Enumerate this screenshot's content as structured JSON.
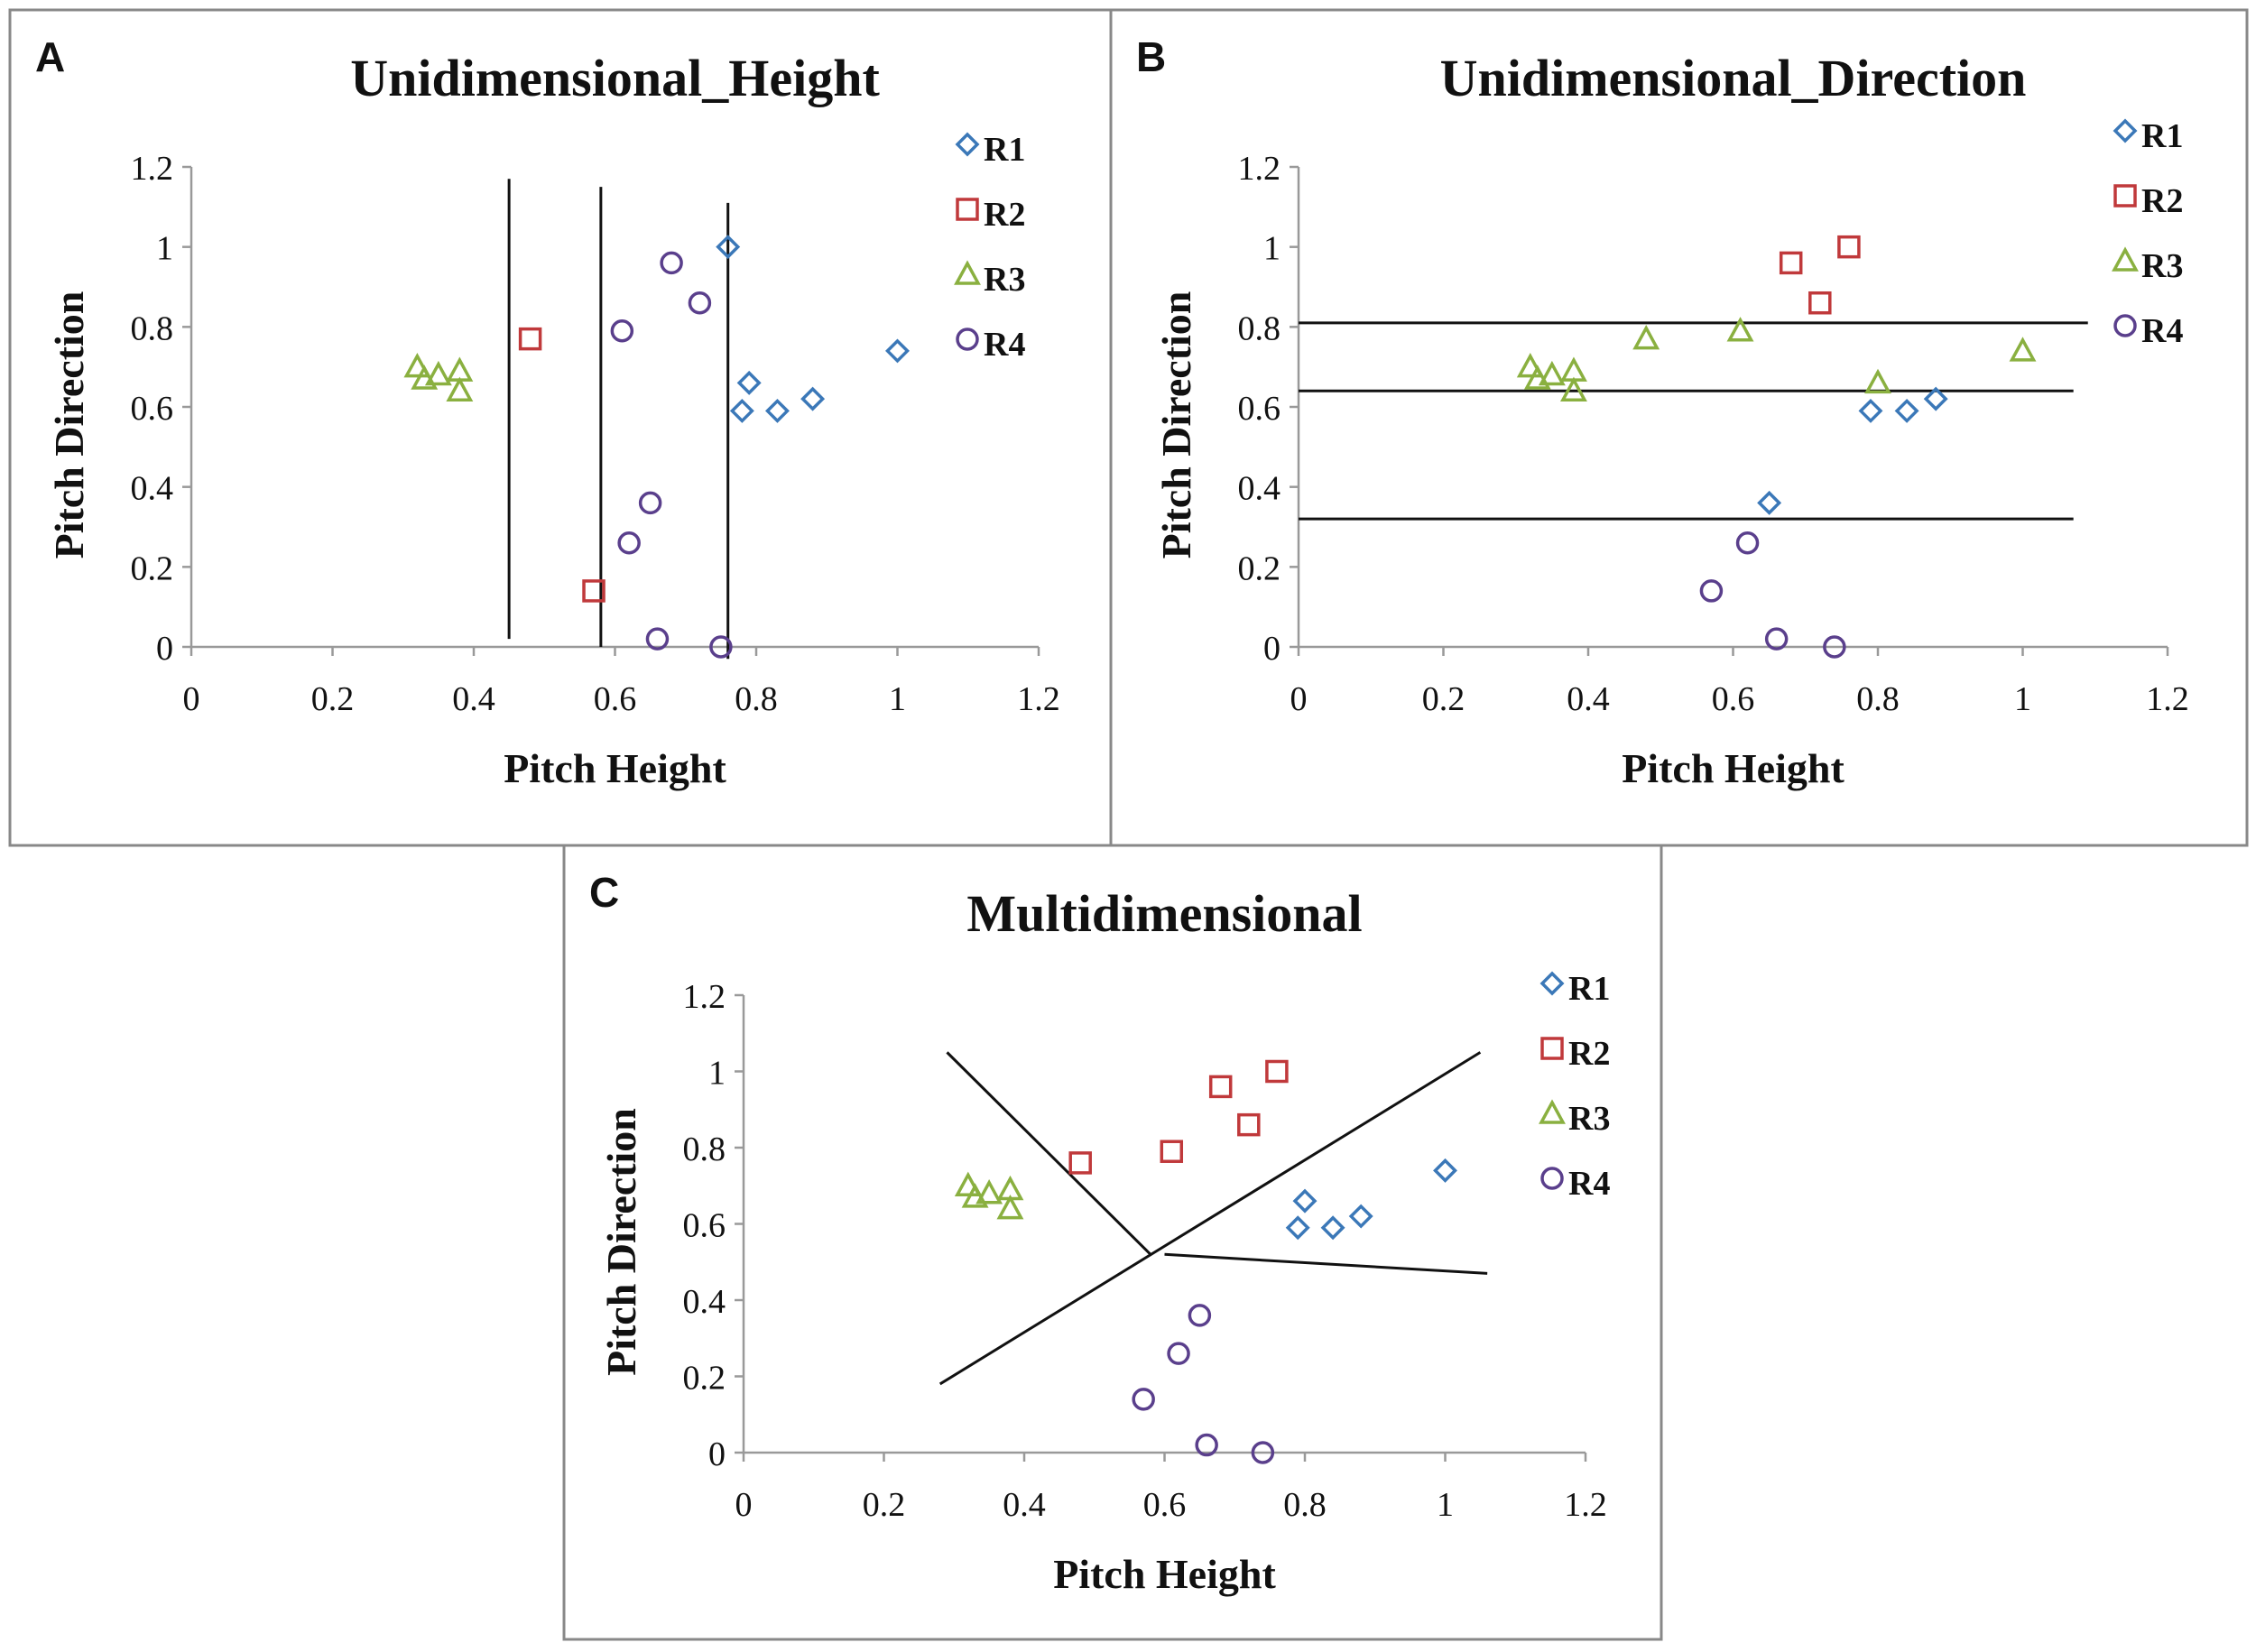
{
  "chart_data": [
    {
      "panel_label": "A",
      "type": "scatter",
      "title": "Unidimensional_Height",
      "xlabel": "Pitch Height",
      "ylabel": "Pitch Direction",
      "xlim": [
        0,
        1.2
      ],
      "ylim": [
        0,
        1.2
      ],
      "xticks": [
        "0",
        "0.2",
        "0.4",
        "0.6",
        "0.8",
        "1",
        "1.2"
      ],
      "yticks": [
        "0",
        "0.2",
        "0.4",
        "0.6",
        "0.8",
        "1",
        "1.2"
      ],
      "legend_position": "top-right",
      "series": [
        {
          "name": "R1",
          "marker": "diamond",
          "color": "#3b78b8",
          "points": [
            [
              0.76,
              1.0
            ],
            [
              0.79,
              0.66
            ],
            [
              0.78,
              0.59
            ],
            [
              0.83,
              0.59
            ],
            [
              0.88,
              0.62
            ],
            [
              1.0,
              0.74
            ]
          ]
        },
        {
          "name": "R2",
          "marker": "square",
          "color": "#c0393b",
          "points": [
            [
              0.48,
              0.77
            ],
            [
              0.57,
              0.14
            ]
          ]
        },
        {
          "name": "R3",
          "marker": "triangle",
          "color": "#8ab040",
          "points": [
            [
              0.32,
              0.7
            ],
            [
              0.33,
              0.67
            ],
            [
              0.35,
              0.68
            ],
            [
              0.38,
              0.69
            ],
            [
              0.38,
              0.64
            ]
          ]
        },
        {
          "name": "R4",
          "marker": "circle",
          "color": "#5a3f8c",
          "points": [
            [
              0.61,
              0.79
            ],
            [
              0.68,
              0.96
            ],
            [
              0.72,
              0.86
            ],
            [
              0.65,
              0.36
            ],
            [
              0.62,
              0.26
            ],
            [
              0.66,
              0.02
            ],
            [
              0.75,
              0.0
            ]
          ]
        }
      ],
      "boundaries": [
        [
          [
            0.45,
            1.17
          ],
          [
            0.45,
            0.02
          ]
        ],
        [
          [
            0.58,
            1.15
          ],
          [
            0.58,
            0.0
          ]
        ],
        [
          [
            0.76,
            1.11
          ],
          [
            0.76,
            -0.03
          ]
        ]
      ]
    },
    {
      "panel_label": "B",
      "type": "scatter",
      "title": "Unidimensional_Direction",
      "xlabel": "Pitch Height",
      "ylabel": "Pitch Direction",
      "xlim": [
        0,
        1.2
      ],
      "ylim": [
        0,
        1.2
      ],
      "xticks": [
        "0",
        "0.2",
        "0.4",
        "0.6",
        "0.8",
        "1",
        "1.2"
      ],
      "yticks": [
        "0",
        "0.2",
        "0.4",
        "0.6",
        "0.8",
        "1",
        "1.2"
      ],
      "legend_position": "top-right",
      "series": [
        {
          "name": "R1",
          "marker": "diamond",
          "color": "#3b78b8",
          "points": [
            [
              0.65,
              0.36
            ],
            [
              0.79,
              0.59
            ],
            [
              0.84,
              0.59
            ],
            [
              0.88,
              0.62
            ]
          ]
        },
        {
          "name": "R2",
          "marker": "square",
          "color": "#c0393b",
          "points": [
            [
              0.68,
              0.96
            ],
            [
              0.76,
              1.0
            ],
            [
              0.72,
              0.86
            ]
          ]
        },
        {
          "name": "R3",
          "marker": "triangle",
          "color": "#8ab040",
          "points": [
            [
              0.32,
              0.7
            ],
            [
              0.33,
              0.67
            ],
            [
              0.35,
              0.68
            ],
            [
              0.38,
              0.69
            ],
            [
              0.38,
              0.64
            ],
            [
              0.48,
              0.77
            ],
            [
              0.61,
              0.79
            ],
            [
              0.8,
              0.66
            ],
            [
              1.0,
              0.74
            ]
          ]
        },
        {
          "name": "R4",
          "marker": "circle",
          "color": "#5a3f8c",
          "points": [
            [
              0.57,
              0.14
            ],
            [
              0.62,
              0.26
            ],
            [
              0.66,
              0.02
            ],
            [
              0.74,
              0.0
            ]
          ]
        }
      ],
      "boundaries": [
        [
          [
            0.0,
            0.81
          ],
          [
            1.09,
            0.81
          ]
        ],
        [
          [
            0.0,
            0.64
          ],
          [
            1.07,
            0.64
          ]
        ],
        [
          [
            0.0,
            0.32
          ],
          [
            1.07,
            0.32
          ]
        ]
      ]
    },
    {
      "panel_label": "C",
      "type": "scatter",
      "title": "Multidimensional",
      "xlabel": "Pitch Height",
      "ylabel": "Pitch Direction",
      "xlim": [
        0,
        1.2
      ],
      "ylim": [
        0,
        1.2
      ],
      "xticks": [
        "0",
        "0.2",
        "0.4",
        "0.6",
        "0.8",
        "1",
        "1.2"
      ],
      "yticks": [
        "0",
        "0.2",
        "0.4",
        "0.6",
        "0.8",
        "1",
        "1.2"
      ],
      "legend_position": "top-right",
      "series": [
        {
          "name": "R1",
          "marker": "diamond",
          "color": "#3b78b8",
          "points": [
            [
              0.79,
              0.59
            ],
            [
              0.8,
              0.66
            ],
            [
              0.84,
              0.59
            ],
            [
              0.88,
              0.62
            ],
            [
              1.0,
              0.74
            ]
          ]
        },
        {
          "name": "R2",
          "marker": "square",
          "color": "#c0393b",
          "points": [
            [
              0.48,
              0.76
            ],
            [
              0.61,
              0.79
            ],
            [
              0.68,
              0.96
            ],
            [
              0.72,
              0.86
            ],
            [
              0.76,
              1.0
            ]
          ]
        },
        {
          "name": "R3",
          "marker": "triangle",
          "color": "#8ab040",
          "points": [
            [
              0.32,
              0.7
            ],
            [
              0.33,
              0.67
            ],
            [
              0.35,
              0.68
            ],
            [
              0.38,
              0.69
            ],
            [
              0.38,
              0.64
            ]
          ]
        },
        {
          "name": "R4",
          "marker": "circle",
          "color": "#5a3f8c",
          "points": [
            [
              0.57,
              0.14
            ],
            [
              0.62,
              0.26
            ],
            [
              0.65,
              0.36
            ],
            [
              0.66,
              0.02
            ],
            [
              0.74,
              0.0
            ]
          ]
        }
      ],
      "boundaries": [
        [
          [
            0.29,
            1.05
          ],
          [
            0.58,
            0.52
          ]
        ],
        [
          [
            0.28,
            0.18
          ],
          [
            1.05,
            1.05
          ]
        ],
        [
          [
            0.6,
            0.52
          ],
          [
            1.06,
            0.47
          ]
        ]
      ]
    }
  ]
}
